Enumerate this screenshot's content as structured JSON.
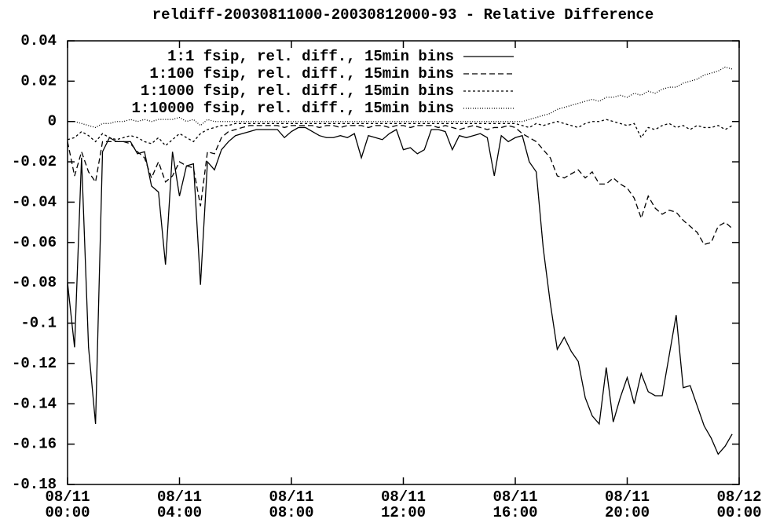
{
  "chart_data": {
    "type": "line",
    "title": "reldiff-20030811000-20030812000-93 - Relative Difference",
    "x": [
      0,
      0.25,
      0.5,
      0.75,
      1,
      1.25,
      1.5,
      1.75,
      2,
      2.25,
      2.5,
      2.75,
      3,
      3.25,
      3.5,
      3.75,
      4,
      4.25,
      4.5,
      4.75,
      5,
      5.25,
      5.5,
      5.75,
      6,
      6.25,
      6.5,
      6.75,
      7,
      7.25,
      7.5,
      7.75,
      8,
      8.25,
      8.5,
      8.75,
      9,
      9.25,
      9.5,
      9.75,
      10,
      10.25,
      10.5,
      10.75,
      11,
      11.25,
      11.5,
      11.75,
      12,
      12.25,
      12.5,
      12.75,
      13,
      13.25,
      13.5,
      13.75,
      14,
      14.25,
      14.5,
      14.75,
      15,
      15.25,
      15.5,
      15.75,
      16,
      16.25,
      16.5,
      16.75,
      17,
      17.25,
      17.5,
      17.75,
      18,
      18.25,
      18.5,
      18.75,
      19,
      19.25,
      19.5,
      19.75,
      20,
      20.25,
      20.5,
      20.75,
      21,
      21.25,
      21.5,
      21.75,
      22,
      22.25,
      22.5,
      22.75,
      23,
      23.25,
      23.5,
      23.75
    ],
    "xlim": [
      0,
      24
    ],
    "xticks": [
      {
        "value": 0,
        "label": "08/11\n00:00"
      },
      {
        "value": 4,
        "label": "08/11\n04:00"
      },
      {
        "value": 8,
        "label": "08/11\n08:00"
      },
      {
        "value": 12,
        "label": "08/11\n12:00"
      },
      {
        "value": 16,
        "label": "08/11\n16:00"
      },
      {
        "value": 20,
        "label": "08/11\n20:00"
      },
      {
        "value": 24,
        "label": "08/12\n00:00"
      }
    ],
    "ylim": [
      -0.18,
      0.04
    ],
    "yticks": [
      0.04,
      0.02,
      0,
      -0.02,
      -0.04,
      -0.06,
      -0.08,
      -0.1,
      -0.12,
      -0.14,
      -0.16,
      -0.18
    ],
    "legend": "top-right",
    "series": [
      {
        "name": "1:1 fsip, rel. diff., 15min bins",
        "color": "#000000",
        "dash": "solid",
        "values": [
          -0.08,
          -0.112,
          -0.018,
          -0.112,
          -0.15,
          -0.015,
          -0.008,
          -0.01,
          -0.01,
          -0.01,
          -0.016,
          -0.015,
          -0.032,
          -0.035,
          -0.071,
          -0.015,
          -0.037,
          -0.022,
          -0.021,
          -0.081,
          -0.02,
          -0.024,
          -0.014,
          -0.01,
          -0.007,
          -0.006,
          -0.005,
          -0.004,
          -0.004,
          -0.004,
          -0.004,
          -0.008,
          -0.005,
          -0.003,
          -0.003,
          -0.005,
          -0.007,
          -0.008,
          -0.008,
          -0.007,
          -0.008,
          -0.006,
          -0.018,
          -0.007,
          -0.008,
          -0.009,
          -0.006,
          -0.004,
          -0.014,
          -0.013,
          -0.016,
          -0.014,
          -0.004,
          -0.004,
          -0.005,
          -0.014,
          -0.007,
          -0.008,
          -0.007,
          -0.006,
          -0.008,
          -0.027,
          -0.007,
          -0.01,
          -0.008,
          -0.007,
          -0.02,
          -0.025,
          -0.063,
          -0.09,
          -0.113,
          -0.107,
          -0.114,
          -0.119,
          -0.137,
          -0.146,
          -0.15,
          -0.122,
          -0.149,
          -0.137,
          -0.127,
          -0.14,
          -0.125,
          -0.134,
          -0.136,
          -0.136,
          -0.116,
          -0.096,
          -0.132,
          -0.131,
          -0.141,
          -0.151,
          -0.157,
          -0.165,
          -0.161,
          -0.155
        ]
      },
      {
        "name": "1:100 fsip, rel. diff., 15min bins",
        "color": "#000000",
        "dash": "dashed",
        "values": [
          -0.01,
          -0.027,
          -0.015,
          -0.025,
          -0.03,
          -0.01,
          -0.01,
          -0.01,
          -0.01,
          -0.011,
          -0.015,
          -0.018,
          -0.028,
          -0.02,
          -0.03,
          -0.027,
          -0.02,
          -0.022,
          -0.023,
          -0.042,
          -0.015,
          -0.016,
          -0.008,
          -0.005,
          -0.004,
          -0.003,
          -0.002,
          -0.002,
          -0.002,
          -0.002,
          -0.002,
          -0.003,
          -0.002,
          -0.002,
          -0.002,
          -0.002,
          -0.003,
          -0.002,
          -0.002,
          -0.003,
          -0.002,
          -0.002,
          -0.002,
          -0.003,
          -0.002,
          -0.002,
          -0.003,
          -0.002,
          -0.002,
          -0.003,
          -0.002,
          -0.002,
          -0.002,
          -0.003,
          -0.002,
          -0.003,
          -0.004,
          -0.003,
          -0.002,
          -0.003,
          -0.004,
          -0.003,
          -0.003,
          -0.002,
          -0.003,
          -0.006,
          -0.008,
          -0.01,
          -0.014,
          -0.018,
          -0.027,
          -0.028,
          -0.026,
          -0.024,
          -0.028,
          -0.025,
          -0.031,
          -0.031,
          -0.028,
          -0.031,
          -0.033,
          -0.038,
          -0.048,
          -0.037,
          -0.043,
          -0.046,
          -0.044,
          -0.045,
          -0.049,
          -0.052,
          -0.055,
          -0.061,
          -0.06,
          -0.052,
          -0.05,
          -0.053
        ]
      },
      {
        "name": "1:1000 fsip, rel. diff., 15min bins",
        "color": "#000000",
        "dash": "short-dashed",
        "values": [
          -0.009,
          -0.008,
          -0.005,
          -0.007,
          -0.01,
          -0.006,
          -0.008,
          -0.009,
          -0.008,
          -0.007,
          -0.008,
          -0.01,
          -0.011,
          -0.008,
          -0.012,
          -0.009,
          -0.006,
          -0.008,
          -0.01,
          -0.006,
          -0.004,
          -0.003,
          -0.002,
          -0.002,
          -0.001,
          -0.001,
          -0.001,
          -0.001,
          -0.001,
          -0.001,
          -0.001,
          -0.001,
          -0.001,
          -0.001,
          -0.001,
          -0.001,
          -0.001,
          -0.001,
          -0.001,
          -0.001,
          -0.001,
          -0.001,
          -0.001,
          -0.001,
          -0.001,
          -0.001,
          -0.001,
          -0.001,
          -0.001,
          -0.001,
          -0.001,
          -0.001,
          -0.001,
          -0.001,
          -0.001,
          -0.001,
          -0.001,
          -0.001,
          -0.001,
          -0.001,
          -0.001,
          -0.001,
          -0.001,
          -0.001,
          -0.001,
          -0.002,
          -0.003,
          -0.001,
          -0.002,
          -0.001,
          0,
          -0.001,
          -0.002,
          -0.003,
          -0.001,
          0,
          0,
          0.001,
          0,
          -0.001,
          -0.002,
          -0.001,
          -0.008,
          -0.003,
          -0.004,
          -0.002,
          -0.001,
          -0.003,
          -0.002,
          -0.004,
          -0.002,
          -0.003,
          -0.003,
          -0.002,
          -0.004,
          -0.002
        ]
      },
      {
        "name": "1:10000 fsip, rel. diff., 15min bins",
        "color": "#000000",
        "dash": "dotted",
        "values": [
          0,
          0,
          -0.001,
          -0.002,
          -0.003,
          -0.001,
          -0.001,
          0,
          0,
          0.001,
          0,
          0.001,
          0,
          0.001,
          0.001,
          0.001,
          0.002,
          0,
          0.001,
          -0.002,
          0.001,
          0,
          0,
          0,
          0,
          0,
          0,
          0,
          0,
          0,
          0,
          0,
          0,
          0,
          0,
          0,
          0,
          0,
          0,
          0,
          0,
          0,
          0,
          0,
          0,
          0,
          0,
          0,
          0,
          0,
          0,
          0,
          0,
          0,
          0,
          0,
          0,
          0,
          0,
          0,
          0,
          0,
          0,
          0,
          0,
          0,
          0.001,
          0.002,
          0.003,
          0.004,
          0.006,
          0.007,
          0.008,
          0.009,
          0.01,
          0.011,
          0.01,
          0.012,
          0.012,
          0.013,
          0.012,
          0.014,
          0.013,
          0.015,
          0.014,
          0.016,
          0.017,
          0.017,
          0.019,
          0.02,
          0.021,
          0.023,
          0.024,
          0.025,
          0.027,
          0.026
        ]
      }
    ]
  }
}
